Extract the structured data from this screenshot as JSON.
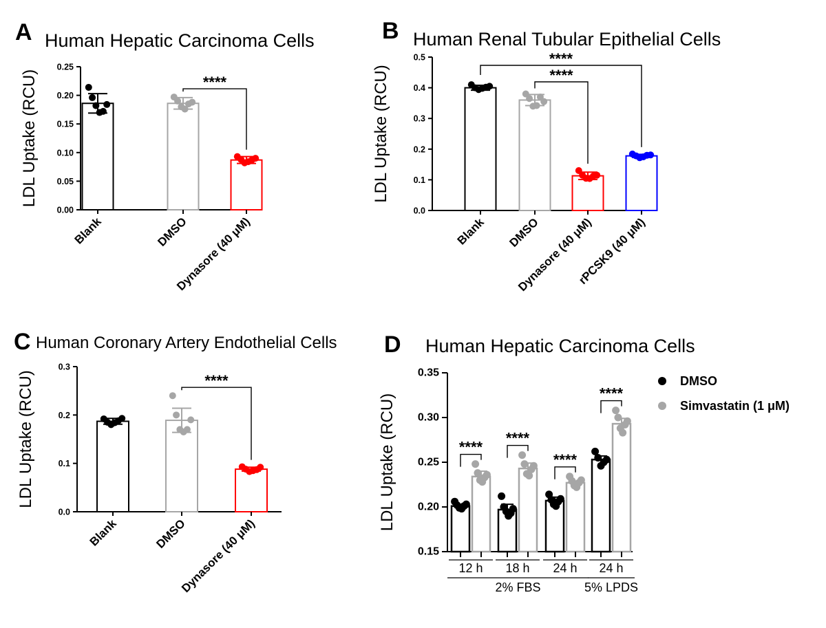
{
  "figure": {
    "panels": [
      {
        "id": "A",
        "letter": "A",
        "title": "Human Hepatic Carcinoma Cells"
      },
      {
        "id": "B",
        "letter": "B",
        "title": "Human Renal Tubular Epithelial Cells"
      },
      {
        "id": "C",
        "letter": "C",
        "title": "Human Coronary Artery Endothelial Cells"
      },
      {
        "id": "D",
        "letter": "D",
        "title": "Human Hepatic Carcinoma Cells"
      }
    ]
  },
  "chart_data": [
    {
      "panel": "A",
      "type": "bar",
      "title": "Human Hepatic Carcinoma Cells",
      "ylabel": "LDL Uptake (RCU)",
      "ylim": [
        0,
        0.25
      ],
      "yticks": [
        "0.00",
        "0.05",
        "0.10",
        "0.15",
        "0.20",
        "0.25"
      ],
      "categories": [
        "Blank",
        "DMSO",
        "Dynasore (40 μM)"
      ],
      "colors": [
        "#000000",
        "#a6a6a6",
        "#ff0000"
      ],
      "values": [
        0.186,
        0.186,
        0.087
      ],
      "errors": [
        0.017,
        0.01,
        0.006
      ],
      "points": [
        [
          0.214,
          0.196,
          0.182,
          0.17,
          0.172,
          0.184
        ],
        [
          0.197,
          0.19,
          0.18,
          0.176,
          0.185,
          0.188
        ],
        [
          0.093,
          0.088,
          0.082,
          0.084,
          0.087,
          0.09
        ]
      ],
      "significance": [
        {
          "from": 1,
          "to": 2,
          "label": "****"
        }
      ]
    },
    {
      "panel": "B",
      "type": "bar",
      "title": "Human Renal Tubular Epithelial Cells",
      "ylabel": "LDL Uptake (RCU)",
      "ylim": [
        0,
        0.5
      ],
      "yticks": [
        "0.0",
        "0.1",
        "0.2",
        "0.3",
        "0.4",
        "0.5"
      ],
      "categories": [
        "Blank",
        "DMSO",
        "Dynasore (40 μM)",
        "rPCSK9 (40 μM)"
      ],
      "colors": [
        "#000000",
        "#a6a6a6",
        "#ff0000",
        "#0000ff"
      ],
      "values": [
        0.4,
        0.36,
        0.113,
        0.178
      ],
      "errors": [
        0.008,
        0.018,
        0.012,
        0.005
      ],
      "points": [
        [
          0.41,
          0.4,
          0.394,
          0.398,
          0.402,
          0.405
        ],
        [
          0.38,
          0.365,
          0.34,
          0.342,
          0.37,
          0.355
        ],
        [
          0.13,
          0.115,
          0.105,
          0.104,
          0.112,
          0.115
        ],
        [
          0.184,
          0.178,
          0.172,
          0.175,
          0.18,
          0.181
        ]
      ],
      "significance": [
        {
          "from": 1,
          "to": 2,
          "label": "****"
        },
        {
          "from": 0,
          "to": 3,
          "label": "****"
        }
      ]
    },
    {
      "panel": "C",
      "type": "bar",
      "title": "Human Coronary Artery Endothelial Cells",
      "ylabel": "LDL Uptake (RCU)",
      "ylim": [
        0,
        0.3
      ],
      "yticks": [
        "0.0",
        "0.1",
        "0.2",
        "0.3"
      ],
      "categories": [
        "Blank",
        "DMSO",
        "Dynasore (40 μM)"
      ],
      "colors": [
        "#000000",
        "#a6a6a6",
        "#ff0000"
      ],
      "values": [
        0.187,
        0.189,
        0.088
      ],
      "errors": [
        0.006,
        0.025,
        0.004
      ],
      "points": [
        [
          0.192,
          0.185,
          0.18,
          0.184,
          0.188,
          0.193
        ],
        [
          0.24,
          0.2,
          0.17,
          0.165,
          0.17,
          0.19
        ],
        [
          0.093,
          0.088,
          0.083,
          0.085,
          0.087,
          0.092
        ]
      ],
      "significance": [
        {
          "from": 1,
          "to": 2,
          "label": "****"
        }
      ]
    },
    {
      "panel": "D",
      "type": "bar",
      "title": "Human Hepatic Carcinoma Cells",
      "ylabel": "LDL Uptake (RCU)",
      "ylim": [
        0.15,
        0.35
      ],
      "yticks": [
        "0.15",
        "0.20",
        "0.25",
        "0.30",
        "0.35"
      ],
      "categories": [
        "12 h",
        "18 h",
        "24 h",
        "24 h"
      ],
      "groups": [
        {
          "label": "2% FBS",
          "span": [
            0,
            2
          ]
        },
        {
          "label": "5% LPDS",
          "span": [
            3,
            3
          ]
        }
      ],
      "legend": [
        "DMSO",
        "Simvastatin (1 μM)"
      ],
      "series": [
        {
          "name": "DMSO",
          "color": "#000000",
          "values": [
            0.201,
            0.197,
            0.207,
            0.253
          ],
          "errors": [
            0.002,
            0.006,
            0.004,
            0.004
          ],
          "points": [
            [
              0.206,
              0.202,
              0.199,
              0.198,
              0.201,
              0.203
            ],
            [
              0.212,
              0.2,
              0.195,
              0.19,
              0.193,
              0.198
            ],
            [
              0.214,
              0.208,
              0.203,
              0.201,
              0.206,
              0.209
            ],
            [
              0.262,
              0.255,
              0.246,
              0.25,
              0.253
            ]
          ]
        },
        {
          "name": "Simvastatin (1 μM)",
          "color": "#a6a6a6",
          "values": [
            0.234,
            0.243,
            0.227,
            0.293
          ],
          "errors": [
            0.006,
            0.006,
            0.002,
            0.006
          ],
          "points": [
            [
              0.248,
              0.238,
              0.23,
              0.228,
              0.233,
              0.236
            ],
            [
              0.258,
              0.248,
              0.237,
              0.235,
              0.242,
              0.246
            ],
            [
              0.234,
              0.229,
              0.224,
              0.222,
              0.227,
              0.23
            ],
            [
              0.308,
              0.3,
              0.288,
              0.283,
              0.292,
              0.296
            ]
          ]
        }
      ],
      "significance": [
        {
          "category": 0,
          "label": "****"
        },
        {
          "category": 1,
          "label": "****"
        },
        {
          "category": 2,
          "label": "****"
        },
        {
          "category": 3,
          "label": "****"
        }
      ]
    }
  ]
}
